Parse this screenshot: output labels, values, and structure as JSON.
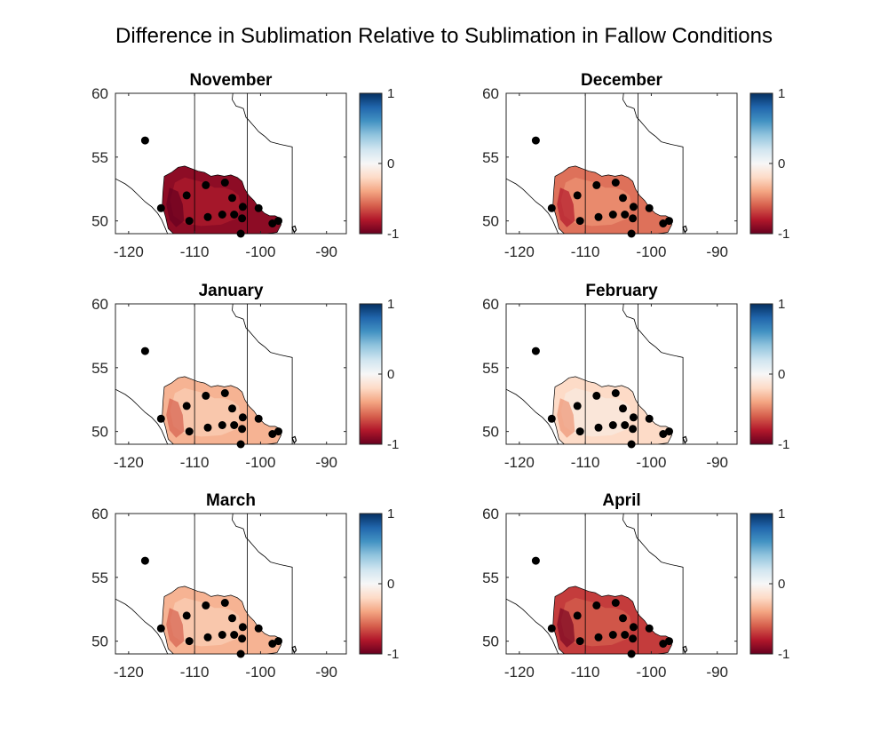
{
  "figure_title": "Difference in Sublimation Relative to Sublimation in Fallow Conditions",
  "colormap": {
    "name": "red-white-blue",
    "stops": [
      "#67001f",
      "#b2182b",
      "#d6604d",
      "#f4a582",
      "#fddbc7",
      "#f7f7f7",
      "#d1e5f0",
      "#92c5de",
      "#4393c3",
      "#2166ac",
      "#053061"
    ],
    "range": [
      -1,
      1
    ]
  },
  "colors": {
    "station_marker": "#000000",
    "boundary_line": "#000000"
  },
  "chart_data": [
    {
      "type": "heatmap",
      "title": "November",
      "xlim": [
        -122,
        -87
      ],
      "ylim": [
        49,
        60
      ],
      "xticks": [
        -120,
        -110,
        -100,
        -90
      ],
      "yticks": [
        50,
        55,
        60
      ],
      "colorbar": {
        "min": -1,
        "max": 1,
        "ticks": [
          -1,
          0,
          1
        ]
      },
      "field_mean": -0.9,
      "stations": [
        [
          -117.5,
          56.3
        ],
        [
          -115.1,
          51.0
        ],
        [
          -111.2,
          52.0
        ],
        [
          -110.8,
          50.0
        ],
        [
          -108.3,
          52.8
        ],
        [
          -108.0,
          50.3
        ],
        [
          -105.4,
          53.0
        ],
        [
          -105.8,
          50.5
        ],
        [
          -104.3,
          51.8
        ],
        [
          -104.0,
          50.5
        ],
        [
          -102.7,
          51.1
        ],
        [
          -102.8,
          50.2
        ],
        [
          -103.0,
          49.0
        ],
        [
          -100.3,
          51.0
        ],
        [
          -98.2,
          49.8
        ],
        [
          -97.3,
          50.0
        ]
      ]
    },
    {
      "type": "heatmap",
      "title": "December",
      "xlim": [
        -122,
        -87
      ],
      "ylim": [
        49,
        60
      ],
      "xticks": [
        -120,
        -110,
        -100,
        -90
      ],
      "yticks": [
        50,
        55,
        60
      ],
      "colorbar": {
        "min": -1,
        "max": 1,
        "ticks": [
          -1,
          0,
          1
        ]
      },
      "field_mean": -0.55,
      "stations": [
        [
          -117.5,
          56.3
        ],
        [
          -115.1,
          51.0
        ],
        [
          -111.2,
          52.0
        ],
        [
          -110.8,
          50.0
        ],
        [
          -108.3,
          52.8
        ],
        [
          -108.0,
          50.3
        ],
        [
          -105.4,
          53.0
        ],
        [
          -105.8,
          50.5
        ],
        [
          -104.3,
          51.8
        ],
        [
          -104.0,
          50.5
        ],
        [
          -102.7,
          51.1
        ],
        [
          -102.8,
          50.2
        ],
        [
          -103.0,
          49.0
        ],
        [
          -100.3,
          51.0
        ],
        [
          -98.2,
          49.8
        ],
        [
          -97.3,
          50.0
        ]
      ]
    },
    {
      "type": "heatmap",
      "title": "January",
      "xlim": [
        -122,
        -87
      ],
      "ylim": [
        49,
        60
      ],
      "xticks": [
        -120,
        -110,
        -100,
        -90
      ],
      "yticks": [
        50,
        55,
        60
      ],
      "colorbar": {
        "min": -1,
        "max": 1,
        "ticks": [
          -1,
          0,
          1
        ]
      },
      "field_mean": -0.35,
      "stations": [
        [
          -117.5,
          56.3
        ],
        [
          -115.1,
          51.0
        ],
        [
          -111.2,
          52.0
        ],
        [
          -110.8,
          50.0
        ],
        [
          -108.3,
          52.8
        ],
        [
          -108.0,
          50.3
        ],
        [
          -105.4,
          53.0
        ],
        [
          -105.8,
          50.5
        ],
        [
          -104.3,
          51.8
        ],
        [
          -104.0,
          50.5
        ],
        [
          -102.7,
          51.1
        ],
        [
          -102.8,
          50.2
        ],
        [
          -103.0,
          49.0
        ],
        [
          -100.3,
          51.0
        ],
        [
          -98.2,
          49.8
        ],
        [
          -97.3,
          50.0
        ]
      ]
    },
    {
      "type": "heatmap",
      "title": "February",
      "xlim": [
        -122,
        -87
      ],
      "ylim": [
        49,
        60
      ],
      "xticks": [
        -120,
        -110,
        -100,
        -90
      ],
      "yticks": [
        50,
        55,
        60
      ],
      "colorbar": {
        "min": -1,
        "max": 1,
        "ticks": [
          -1,
          0,
          1
        ]
      },
      "field_mean": -0.2,
      "stations": [
        [
          -117.5,
          56.3
        ],
        [
          -115.1,
          51.0
        ],
        [
          -111.2,
          52.0
        ],
        [
          -110.8,
          50.0
        ],
        [
          -108.3,
          52.8
        ],
        [
          -108.0,
          50.3
        ],
        [
          -105.4,
          53.0
        ],
        [
          -105.8,
          50.5
        ],
        [
          -104.3,
          51.8
        ],
        [
          -104.0,
          50.5
        ],
        [
          -102.7,
          51.1
        ],
        [
          -102.8,
          50.2
        ],
        [
          -103.0,
          49.0
        ],
        [
          -100.3,
          51.0
        ],
        [
          -98.2,
          49.8
        ],
        [
          -97.3,
          50.0
        ]
      ]
    },
    {
      "type": "heatmap",
      "title": "March",
      "xlim": [
        -122,
        -87
      ],
      "ylim": [
        49,
        60
      ],
      "xticks": [
        -120,
        -110,
        -100,
        -90
      ],
      "yticks": [
        50,
        55,
        60
      ],
      "colorbar": {
        "min": -1,
        "max": 1,
        "ticks": [
          -1,
          0,
          1
        ]
      },
      "field_mean": -0.35,
      "stations": [
        [
          -117.5,
          56.3
        ],
        [
          -115.1,
          51.0
        ],
        [
          -111.2,
          52.0
        ],
        [
          -110.8,
          50.0
        ],
        [
          -108.3,
          52.8
        ],
        [
          -108.0,
          50.3
        ],
        [
          -105.4,
          53.0
        ],
        [
          -105.8,
          50.5
        ],
        [
          -104.3,
          51.8
        ],
        [
          -104.0,
          50.5
        ],
        [
          -102.7,
          51.1
        ],
        [
          -102.8,
          50.2
        ],
        [
          -103.0,
          49.0
        ],
        [
          -100.3,
          51.0
        ],
        [
          -98.2,
          49.8
        ],
        [
          -97.3,
          50.0
        ]
      ]
    },
    {
      "type": "heatmap",
      "title": "April",
      "xlim": [
        -122,
        -87
      ],
      "ylim": [
        49,
        60
      ],
      "xticks": [
        -120,
        -110,
        -100,
        -90
      ],
      "yticks": [
        50,
        55,
        60
      ],
      "colorbar": {
        "min": -1,
        "max": 1,
        "ticks": [
          -1,
          0,
          1
        ]
      },
      "field_mean": -0.7,
      "stations": [
        [
          -117.5,
          56.3
        ],
        [
          -115.1,
          51.0
        ],
        [
          -111.2,
          52.0
        ],
        [
          -110.8,
          50.0
        ],
        [
          -108.3,
          52.8
        ],
        [
          -108.0,
          50.3
        ],
        [
          -105.4,
          53.0
        ],
        [
          -105.8,
          50.5
        ],
        [
          -104.3,
          51.8
        ],
        [
          -104.0,
          50.5
        ],
        [
          -102.7,
          51.1
        ],
        [
          -102.8,
          50.2
        ],
        [
          -103.0,
          49.0
        ],
        [
          -100.3,
          51.0
        ],
        [
          -98.2,
          49.8
        ],
        [
          -97.3,
          50.0
        ]
      ]
    }
  ]
}
